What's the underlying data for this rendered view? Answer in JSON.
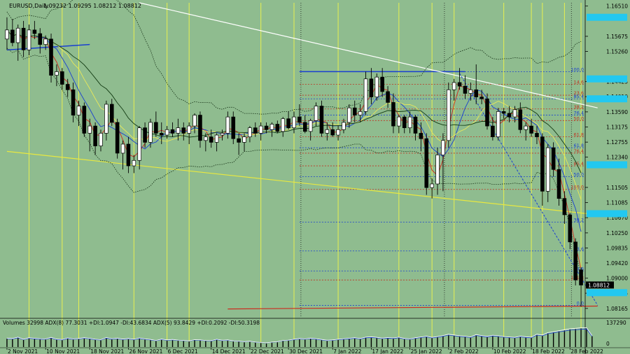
{
  "chart_data": {
    "type": "candlestick",
    "header": {
      "label": "EURUSD,Daily",
      "ohlc": "1.09232 1.09295 1.08212 1.08812"
    },
    "price_ticks": [
      "1.16510",
      "1.15675",
      "1.15260",
      "1.14425",
      "1.14010",
      "1.13590",
      "1.13175",
      "1.12755",
      "1.12340",
      "1.11505",
      "1.11085",
      "1.10670",
      "1.10250",
      "1.09835",
      "1.09420",
      "1.09000",
      "1.08585",
      "1.08165"
    ],
    "price_range": [
      1.0795,
      1.166
    ],
    "highlighted_levels": [
      {
        "value": 1.162,
        "color": "#22c8f0"
      },
      {
        "value": 1.145,
        "color": "#22c8f0"
      },
      {
        "value": 1.1395,
        "color": "#22c8f0"
      },
      {
        "value": 1.1213,
        "color": "#22c8f0"
      },
      {
        "value": 1.1078,
        "color": "#22c8f0"
      },
      {
        "value": 1.086,
        "color": "#22c8f0"
      }
    ],
    "current_price": "1.08812",
    "date_labels": [
      "2 Nov 2021",
      "10 Nov 2021",
      "18 Nov 2021",
      "26 Nov 2021",
      "6 Dec 2021",
      "14 Dec 2021",
      "22 Dec 2021",
      "30 Dec 2021",
      "7 Jan 2022",
      "17 Jan 2022",
      "25 Jan 2022",
      "2 Feb 2022",
      "10 Feb 2022",
      "18 Feb 2022",
      "28 Feb 2022"
    ],
    "candles": [
      {
        "o": 1.156,
        "h": 1.162,
        "l": 1.153,
        "c": 1.1585
      },
      {
        "o": 1.1585,
        "h": 1.1615,
        "l": 1.154,
        "c": 1.155
      },
      {
        "o": 1.155,
        "h": 1.16,
        "l": 1.15,
        "c": 1.159
      },
      {
        "o": 1.159,
        "h": 1.161,
        "l": 1.151,
        "c": 1.153
      },
      {
        "o": 1.153,
        "h": 1.16,
        "l": 1.1515,
        "c": 1.1585
      },
      {
        "o": 1.1585,
        "h": 1.161,
        "l": 1.156,
        "c": 1.1575
      },
      {
        "o": 1.1575,
        "h": 1.159,
        "l": 1.152,
        "c": 1.1545
      },
      {
        "o": 1.1545,
        "h": 1.157,
        "l": 1.153,
        "c": 1.156
      },
      {
        "o": 1.156,
        "h": 1.1575,
        "l": 1.144,
        "c": 1.146
      },
      {
        "o": 1.146,
        "h": 1.149,
        "l": 1.143,
        "c": 1.147
      },
      {
        "o": 1.147,
        "h": 1.148,
        "l": 1.142,
        "c": 1.1435
      },
      {
        "o": 1.1435,
        "h": 1.145,
        "l": 1.14,
        "c": 1.142
      },
      {
        "o": 1.142,
        "h": 1.144,
        "l": 1.133,
        "c": 1.135
      },
      {
        "o": 1.135,
        "h": 1.139,
        "l": 1.132,
        "c": 1.1375
      },
      {
        "o": 1.1375,
        "h": 1.1385,
        "l": 1.129,
        "c": 1.13
      },
      {
        "o": 1.13,
        "h": 1.134,
        "l": 1.125,
        "c": 1.132
      },
      {
        "o": 1.132,
        "h": 1.133,
        "l": 1.124,
        "c": 1.1265
      },
      {
        "o": 1.1265,
        "h": 1.131,
        "l": 1.125,
        "c": 1.13
      },
      {
        "o": 1.13,
        "h": 1.139,
        "l": 1.128,
        "c": 1.138
      },
      {
        "o": 1.138,
        "h": 1.1395,
        "l": 1.132,
        "c": 1.133
      },
      {
        "o": 1.133,
        "h": 1.134,
        "l": 1.123,
        "c": 1.1245
      },
      {
        "o": 1.1245,
        "h": 1.128,
        "l": 1.12,
        "c": 1.127
      },
      {
        "o": 1.127,
        "h": 1.129,
        "l": 1.119,
        "c": 1.121
      },
      {
        "o": 1.121,
        "h": 1.124,
        "l": 1.119,
        "c": 1.1225
      },
      {
        "o": 1.1225,
        "h": 1.132,
        "l": 1.12,
        "c": 1.1315
      },
      {
        "o": 1.1315,
        "h": 1.133,
        "l": 1.126,
        "c": 1.1275
      },
      {
        "o": 1.1275,
        "h": 1.134,
        "l": 1.126,
        "c": 1.133
      },
      {
        "o": 1.133,
        "h": 1.136,
        "l": 1.129,
        "c": 1.13
      },
      {
        "o": 1.13,
        "h": 1.133,
        "l": 1.127,
        "c": 1.1295
      },
      {
        "o": 1.1295,
        "h": 1.132,
        "l": 1.1285,
        "c": 1.131
      },
      {
        "o": 1.131,
        "h": 1.133,
        "l": 1.129,
        "c": 1.13
      },
      {
        "o": 1.13,
        "h": 1.134,
        "l": 1.128,
        "c": 1.1315
      },
      {
        "o": 1.1315,
        "h": 1.133,
        "l": 1.128,
        "c": 1.13
      },
      {
        "o": 1.13,
        "h": 1.133,
        "l": 1.127,
        "c": 1.132
      },
      {
        "o": 1.132,
        "h": 1.1355,
        "l": 1.13,
        "c": 1.135
      },
      {
        "o": 1.135,
        "h": 1.136,
        "l": 1.126,
        "c": 1.128
      },
      {
        "o": 1.128,
        "h": 1.13,
        "l": 1.125,
        "c": 1.129
      },
      {
        "o": 1.129,
        "h": 1.131,
        "l": 1.126,
        "c": 1.1275
      },
      {
        "o": 1.1275,
        "h": 1.13,
        "l": 1.125,
        "c": 1.1295
      },
      {
        "o": 1.1295,
        "h": 1.131,
        "l": 1.128,
        "c": 1.13
      },
      {
        "o": 1.13,
        "h": 1.136,
        "l": 1.1285,
        "c": 1.1345
      },
      {
        "o": 1.1345,
        "h": 1.136,
        "l": 1.127,
        "c": 1.1285
      },
      {
        "o": 1.1285,
        "h": 1.13,
        "l": 1.124,
        "c": 1.1275
      },
      {
        "o": 1.1275,
        "h": 1.13,
        "l": 1.125,
        "c": 1.129
      },
      {
        "o": 1.129,
        "h": 1.132,
        "l": 1.1275,
        "c": 1.1315
      },
      {
        "o": 1.1315,
        "h": 1.133,
        "l": 1.129,
        "c": 1.13
      },
      {
        "o": 1.13,
        "h": 1.133,
        "l": 1.128,
        "c": 1.132
      },
      {
        "o": 1.132,
        "h": 1.133,
        "l": 1.13,
        "c": 1.131
      },
      {
        "o": 1.131,
        "h": 1.133,
        "l": 1.129,
        "c": 1.1325
      },
      {
        "o": 1.1325,
        "h": 1.1335,
        "l": 1.13,
        "c": 1.1305
      },
      {
        "o": 1.1305,
        "h": 1.1345,
        "l": 1.129,
        "c": 1.134
      },
      {
        "o": 1.134,
        "h": 1.136,
        "l": 1.131,
        "c": 1.1315
      },
      {
        "o": 1.1315,
        "h": 1.136,
        "l": 1.13,
        "c": 1.1345
      },
      {
        "o": 1.1345,
        "h": 1.138,
        "l": 1.132,
        "c": 1.133
      },
      {
        "o": 1.133,
        "h": 1.135,
        "l": 1.13,
        "c": 1.1305
      },
      {
        "o": 1.1305,
        "h": 1.134,
        "l": 1.128,
        "c": 1.1335
      },
      {
        "o": 1.1335,
        "h": 1.1385,
        "l": 1.132,
        "c": 1.1375
      },
      {
        "o": 1.1375,
        "h": 1.139,
        "l": 1.129,
        "c": 1.13
      },
      {
        "o": 1.13,
        "h": 1.133,
        "l": 1.128,
        "c": 1.131
      },
      {
        "o": 1.131,
        "h": 1.133,
        "l": 1.129,
        "c": 1.1295
      },
      {
        "o": 1.1295,
        "h": 1.132,
        "l": 1.128,
        "c": 1.131
      },
      {
        "o": 1.131,
        "h": 1.134,
        "l": 1.13,
        "c": 1.133
      },
      {
        "o": 1.133,
        "h": 1.138,
        "l": 1.1315,
        "c": 1.137
      },
      {
        "o": 1.137,
        "h": 1.139,
        "l": 1.133,
        "c": 1.135
      },
      {
        "o": 1.135,
        "h": 1.138,
        "l": 1.133,
        "c": 1.136
      },
      {
        "o": 1.136,
        "h": 1.147,
        "l": 1.135,
        "c": 1.145
      },
      {
        "o": 1.145,
        "h": 1.148,
        "l": 1.138,
        "c": 1.14
      },
      {
        "o": 1.14,
        "h": 1.1465,
        "l": 1.139,
        "c": 1.1455
      },
      {
        "o": 1.1455,
        "h": 1.148,
        "l": 1.14,
        "c": 1.1415
      },
      {
        "o": 1.1415,
        "h": 1.143,
        "l": 1.137,
        "c": 1.1385
      },
      {
        "o": 1.1385,
        "h": 1.141,
        "l": 1.13,
        "c": 1.132
      },
      {
        "o": 1.132,
        "h": 1.135,
        "l": 1.13,
        "c": 1.1345
      },
      {
        "o": 1.1345,
        "h": 1.135,
        "l": 1.13,
        "c": 1.1315
      },
      {
        "o": 1.1315,
        "h": 1.136,
        "l": 1.13,
        "c": 1.1345
      },
      {
        "o": 1.1345,
        "h": 1.135,
        "l": 1.128,
        "c": 1.13
      },
      {
        "o": 1.13,
        "h": 1.133,
        "l": 1.125,
        "c": 1.1285
      },
      {
        "o": 1.1285,
        "h": 1.13,
        "l": 1.113,
        "c": 1.115
      },
      {
        "o": 1.115,
        "h": 1.1175,
        "l": 1.112,
        "c": 1.116
      },
      {
        "o": 1.116,
        "h": 1.126,
        "l": 1.113,
        "c": 1.124
      },
      {
        "o": 1.124,
        "h": 1.13,
        "l": 1.114,
        "c": 1.128
      },
      {
        "o": 1.128,
        "h": 1.144,
        "l": 1.126,
        "c": 1.142
      },
      {
        "o": 1.142,
        "h": 1.145,
        "l": 1.139,
        "c": 1.144
      },
      {
        "o": 1.144,
        "h": 1.148,
        "l": 1.142,
        "c": 1.143
      },
      {
        "o": 1.143,
        "h": 1.146,
        "l": 1.1395,
        "c": 1.141
      },
      {
        "o": 1.141,
        "h": 1.144,
        "l": 1.139,
        "c": 1.142
      },
      {
        "o": 1.142,
        "h": 1.149,
        "l": 1.138,
        "c": 1.14
      },
      {
        "o": 1.14,
        "h": 1.142,
        "l": 1.138,
        "c": 1.1395
      },
      {
        "o": 1.1395,
        "h": 1.141,
        "l": 1.131,
        "c": 1.132
      },
      {
        "o": 1.132,
        "h": 1.1345,
        "l": 1.128,
        "c": 1.129
      },
      {
        "o": 1.129,
        "h": 1.137,
        "l": 1.128,
        "c": 1.136
      },
      {
        "o": 1.136,
        "h": 1.137,
        "l": 1.134,
        "c": 1.1355
      },
      {
        "o": 1.1355,
        "h": 1.1375,
        "l": 1.133,
        "c": 1.1345
      },
      {
        "o": 1.1345,
        "h": 1.1375,
        "l": 1.133,
        "c": 1.1365
      },
      {
        "o": 1.1365,
        "h": 1.1385,
        "l": 1.13,
        "c": 1.131
      },
      {
        "o": 1.131,
        "h": 1.133,
        "l": 1.128,
        "c": 1.132
      },
      {
        "o": 1.132,
        "h": 1.134,
        "l": 1.129,
        "c": 1.13
      },
      {
        "o": 1.13,
        "h": 1.132,
        "l": 1.127,
        "c": 1.129
      },
      {
        "o": 1.129,
        "h": 1.13,
        "l": 1.11,
        "c": 1.114
      },
      {
        "o": 1.114,
        "h": 1.127,
        "l": 1.111,
        "c": 1.126
      },
      {
        "o": 1.126,
        "h": 1.1275,
        "l": 1.118,
        "c": 1.12
      },
      {
        "o": 1.12,
        "h": 1.123,
        "l": 1.11,
        "c": 1.112
      },
      {
        "o": 1.112,
        "h": 1.114,
        "l": 1.105,
        "c": 1.1075
      },
      {
        "o": 1.1075,
        "h": 1.108,
        "l": 1.098,
        "c": 1.1
      },
      {
        "o": 1.1,
        "h": 1.101,
        "l": 1.088,
        "c": 1.0895
      },
      {
        "o": 1.0923,
        "h": 1.093,
        "l": 1.0821,
        "c": 1.0881
      }
    ],
    "indicators": [
      {
        "type": "sma",
        "period": 3,
        "color": "#cc2a1e"
      },
      {
        "type": "sma",
        "period": 6,
        "color": "#1a3fd0"
      },
      {
        "type": "sma",
        "period": 10,
        "color": "#e8e85a"
      },
      {
        "type": "sma",
        "period": 15,
        "color": "#123a12"
      },
      {
        "type": "bollinger",
        "period": 20,
        "color": "#153015"
      }
    ],
    "horizontal_levels": [
      {
        "value": 1.147,
        "color": "#1a3fd0",
        "dash": false
      },
      {
        "value": 1.147,
        "label": "100.0",
        "label_color": "#1a3fd0",
        "color": "#1a3fd0",
        "dash": true
      },
      {
        "value": 1.1435,
        "label": "14.6",
        "label_color": "#c03020",
        "color": "#c03020",
        "dash": true
      },
      {
        "value": 1.1405,
        "label": "23.6",
        "label_color": "#c03020",
        "color": "#c03020",
        "dash": true
      },
      {
        "value": 1.1395,
        "label": "85.4",
        "label_color": "#1a3fd0",
        "color": "#1a3fd0",
        "dash": true
      },
      {
        "value": 1.1367,
        "label": "38.2",
        "label_color": "#c03020",
        "color": "#c03020",
        "dash": true
      },
      {
        "value": 1.135,
        "label": "76.4",
        "label_color": "#1a3fd0",
        "color": "#1a3fd0",
        "dash": true
      },
      {
        "value": 1.1335,
        "label": "50.0",
        "label_color": "#c03020",
        "color": "#c03020",
        "dash": true
      },
      {
        "value": 1.129,
        "label": "61.8",
        "label_color": "#c03020",
        "color": "#c03020",
        "dash": true
      },
      {
        "value": 1.126,
        "label": "61.8",
        "label_color": "#1a3fd0",
        "color": "#1a3fd0",
        "dash": true
      },
      {
        "value": 1.1245,
        "label": "76.4",
        "label_color": "#c03020",
        "color": "#c03020",
        "dash": true
      },
      {
        "value": 1.121,
        "label": "85.4",
        "label_color": "#c03020",
        "color": "#c03020",
        "dash": true
      },
      {
        "value": 1.118,
        "label": "50.0",
        "label_color": "#1a3fd0",
        "color": "#1a3fd0",
        "dash": true
      },
      {
        "value": 1.1145,
        "label": "100.0",
        "label_color": "#c03020",
        "color": "#c03020",
        "dash": true
      },
      {
        "value": 1.1055,
        "label": "38.2",
        "label_color": "#1a3fd0",
        "color": "#1a3fd0",
        "dash": true
      },
      {
        "value": 1.0975,
        "label": "23.6",
        "label_color": "#1a3fd0",
        "color": "#1a3fd0",
        "dash": true
      },
      {
        "value": 1.092,
        "label": "14.6",
        "label_color": "#1a3fd0",
        "color": "#1a3fd0",
        "dash": true
      },
      {
        "value": 1.0895,
        "label": "161.8",
        "label_color": "#c03020",
        "color": "#c03020",
        "dash": true
      },
      {
        "value": 1.0825,
        "label": "0.0",
        "label_color": "#1a3fd0",
        "color": "#1a3fd0",
        "dash": true
      }
    ],
    "trendlines": [
      {
        "from": {
          "i": 0,
          "p": 1.153
        },
        "to": {
          "i": 15,
          "p": 1.1545
        },
        "color": "#1a3fd0",
        "width": 1.5
      },
      {
        "from": {
          "i": 0,
          "p": 1.125
        },
        "to": {
          "i": 107,
          "p": 1.1075
        },
        "color": "#e8e840",
        "width": 1.2
      },
      {
        "from": {
          "i": 24,
          "p": 1.166
        },
        "to": {
          "i": 107,
          "p": 1.137
        },
        "color": "#ffffff",
        "width": 1.2
      },
      {
        "from": {
          "i": 82,
          "p": 1.1465
        },
        "to": {
          "i": 107,
          "p": 1.0825
        },
        "color": "#1a3fd0",
        "width": 1,
        "dash": true
      },
      {
        "from": {
          "i": 40,
          "p": 1.0815
        },
        "to": {
          "i": 107,
          "p": 1.0823
        },
        "color": "#cc2a1e",
        "width": 1.2
      }
    ],
    "vertical_lines_yellow": [
      4,
      10,
      13,
      23,
      29,
      33,
      46,
      52,
      60,
      71,
      77,
      81,
      90,
      95,
      97,
      101,
      104
    ],
    "vertical_lines_black_dotted": [
      53,
      79,
      102
    ],
    "volume_panel": {
      "label": "Volumes 32998  ADX(8) 77.3031 +DI:1.0947 -DI:43.6834  ADX(5) 93.8429 +DI:0.2092 -DI:50.3198",
      "ticks": [
        "137290",
        "0"
      ],
      "volumes": [
        0.42,
        0.4,
        0.47,
        0.36,
        0.44,
        0.41,
        0.39,
        0.38,
        0.46,
        0.37,
        0.35,
        0.43,
        0.38,
        0.4,
        0.44,
        0.41,
        0.36,
        0.34,
        0.45,
        0.39,
        0.42,
        0.37,
        0.4,
        0.36,
        0.43,
        0.38,
        0.35,
        0.3,
        0.37,
        0.33,
        0.35,
        0.32,
        0.3,
        0.28,
        0.34,
        0.33,
        0.3,
        0.29,
        0.36,
        0.31,
        0.33,
        0.28,
        0.27,
        0.24,
        0.26,
        0.22,
        0.2,
        0.18,
        0.22,
        0.24,
        0.3,
        0.32,
        0.36,
        0.4,
        0.38,
        0.42,
        0.39,
        0.35,
        0.31,
        0.33,
        0.36,
        0.39,
        0.41,
        0.44,
        0.4,
        0.47,
        0.49,
        0.46,
        0.42,
        0.45,
        0.43,
        0.47,
        0.4,
        0.38,
        0.44,
        0.48,
        0.52,
        0.46,
        0.5,
        0.55,
        0.62,
        0.58,
        0.54,
        0.52,
        0.48,
        0.6,
        0.55,
        0.51,
        0.57,
        0.54,
        0.5,
        0.48,
        0.46,
        0.52,
        0.49,
        0.47,
        0.62,
        0.58,
        0.7,
        0.75,
        0.8,
        0.85,
        0.9,
        0.92,
        0.95,
        0.97,
        0.55
      ]
    }
  }
}
